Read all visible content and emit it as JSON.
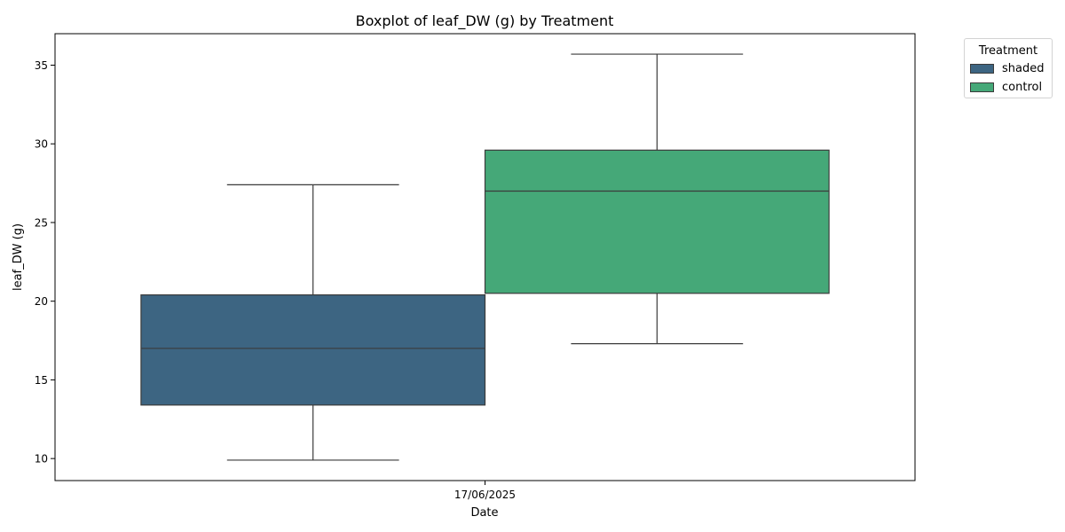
{
  "chart_data": {
    "type": "box",
    "title": "Boxplot of leaf_DW (g) by Treatment",
    "xlabel": "Date",
    "ylabel": "leaf_DW (g)",
    "categories": [
      "17/06/2025"
    ],
    "ylim": [
      8.6,
      37.0
    ],
    "yticks": [
      10,
      15,
      20,
      25,
      30,
      35
    ],
    "grid": false,
    "legend": {
      "title": "Treatment",
      "placement": "outside-top-right"
    },
    "series": [
      {
        "name": "shaded",
        "color": "#3d6582",
        "boxes": [
          {
            "category": "17/06/2025",
            "whisker_low": 9.9,
            "q1": 13.4,
            "median": 17.0,
            "q3": 20.4,
            "whisker_high": 27.4
          }
        ]
      },
      {
        "name": "control",
        "color": "#45a878",
        "boxes": [
          {
            "category": "17/06/2025",
            "whisker_low": 17.3,
            "q1": 20.5,
            "median": 27.0,
            "q3": 29.6,
            "whisker_high": 35.7
          }
        ]
      }
    ]
  }
}
